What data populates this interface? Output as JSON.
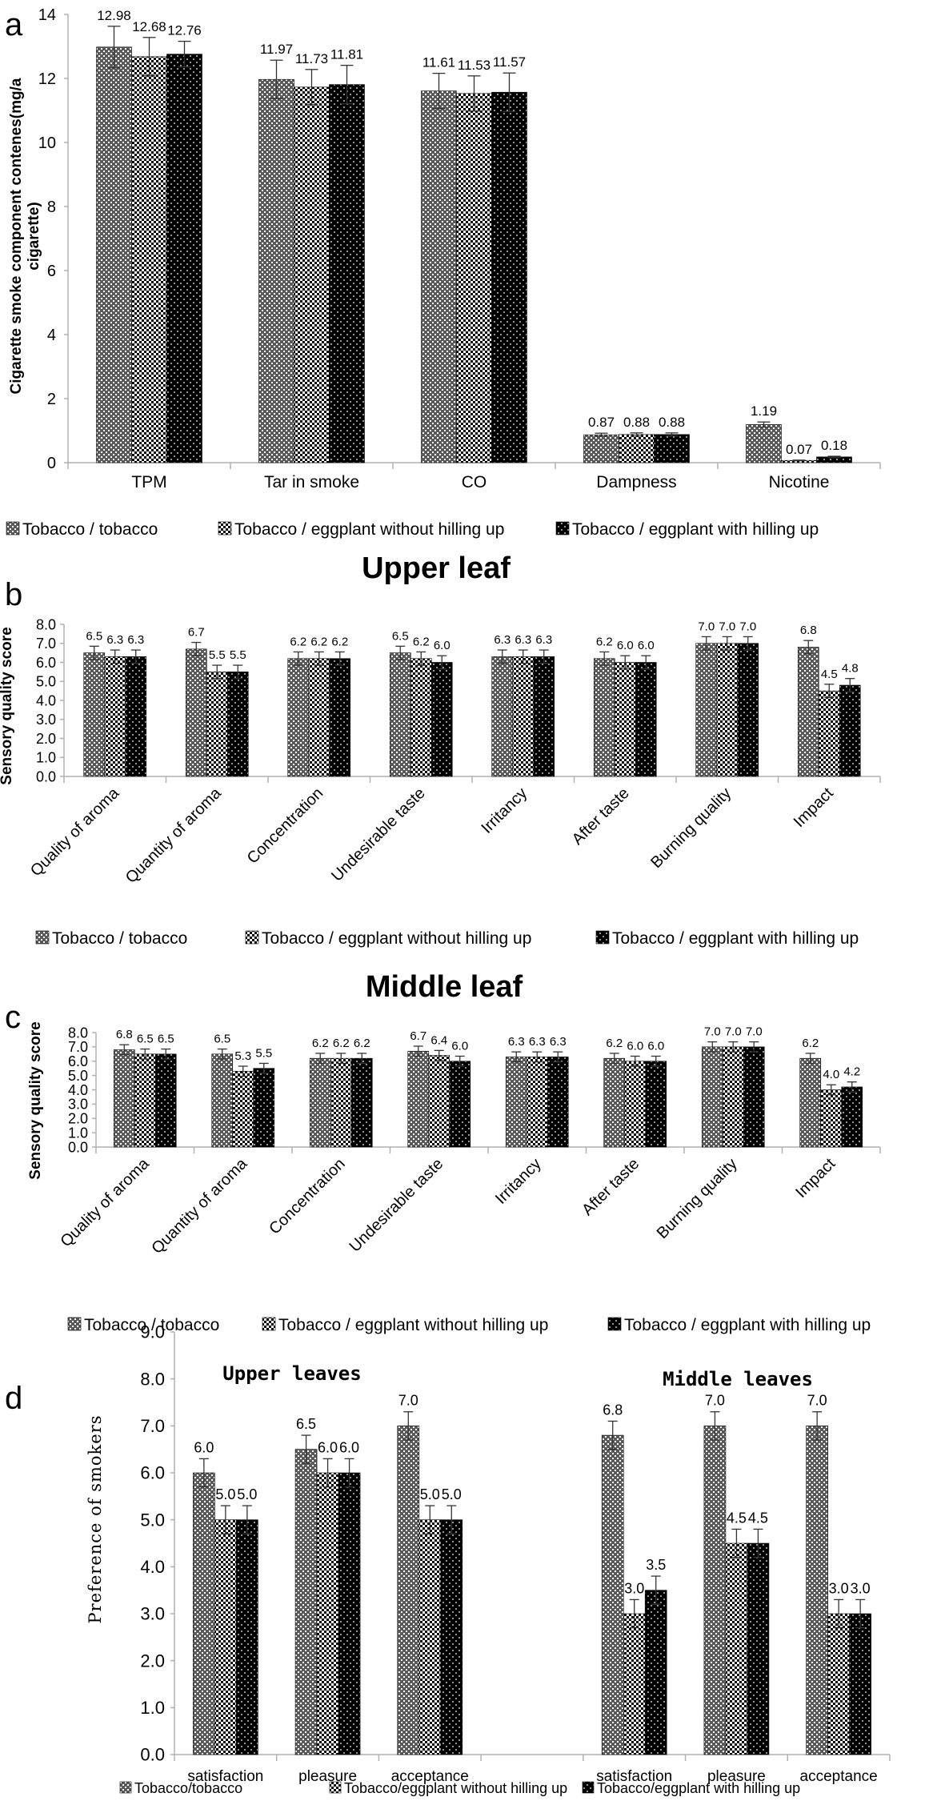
{
  "chart_data": [
    {
      "panel": "a",
      "type": "bar",
      "title": "",
      "ylabel": "Cigarette smoke component contenes(mg/a cigarette)",
      "xlabel": "",
      "ylim": [
        0,
        14
      ],
      "yticks": [
        "0",
        "2",
        "4",
        "6",
        "8",
        "10",
        "12",
        "14"
      ],
      "categories": [
        "TPM",
        "Tar in smoke",
        "CO",
        "Dampness",
        "Nicotine"
      ],
      "series": [
        {
          "name": "Tobacco / tobacco",
          "values": [
            12.98,
            11.97,
            11.61,
            0.87,
            1.19
          ],
          "labels": [
            "12.98",
            "11.97",
            "11.61",
            "0.87",
            "1.19"
          ],
          "errors": [
            0.65,
            0.6,
            0.55,
            0.05,
            0.08
          ]
        },
        {
          "name": "Tobacco / eggplant without hilling up",
          "values": [
            12.68,
            11.73,
            11.53,
            0.88,
            0.07
          ],
          "labels": [
            "12.68",
            "11.73",
            "11.53",
            "0.88",
            "0.07"
          ],
          "errors": [
            0.6,
            0.55,
            0.55,
            0.05,
            0.01
          ]
        },
        {
          "name": "Tobacco / eggplant with hilling up",
          "values": [
            12.76,
            11.81,
            11.57,
            0.88,
            0.18
          ],
          "labels": [
            "12.76",
            "11.81",
            "11.57",
            "0.88",
            "0.18"
          ],
          "errors": [
            0.4,
            0.6,
            0.6,
            0.05,
            0.02
          ]
        }
      ],
      "grid": false,
      "legend": "bottom"
    },
    {
      "panel": "b",
      "type": "bar",
      "title": "Upper leaf",
      "ylabel": "Sensory quality score",
      "xlabel": "",
      "ylim": [
        0,
        8
      ],
      "yticks": [
        "0.0",
        "1.0",
        "2.0",
        "3.0",
        "4.0",
        "5.0",
        "6.0",
        "7.0",
        "8.0"
      ],
      "categories": [
        "Quality of aroma",
        "Quantity of aroma",
        "Concentration",
        "Undesirable taste",
        "Irritancy",
        "After taste",
        "Burning quality",
        "Impact"
      ],
      "series": [
        {
          "name": "Tobacco / tobacco",
          "values": [
            6.5,
            6.7,
            6.2,
            6.5,
            6.3,
            6.2,
            7.0,
            6.8
          ],
          "labels": [
            "6.5",
            "6.7",
            "6.2",
            "6.5",
            "6.3",
            "6.2",
            "7.0",
            "6.8"
          ]
        },
        {
          "name": "Tobacco / eggplant without hilling up",
          "values": [
            6.3,
            5.5,
            6.2,
            6.2,
            6.3,
            6.0,
            7.0,
            4.5
          ],
          "labels": [
            "6.3",
            "5.5",
            "6.2",
            "6.2",
            "6.3",
            "6.0",
            "7.0",
            "4.5"
          ]
        },
        {
          "name": "Tobacco / eggplant with hilling up",
          "values": [
            6.3,
            5.5,
            6.2,
            6.0,
            6.3,
            6.0,
            7.0,
            4.8
          ],
          "labels": [
            "6.3",
            "5.5",
            "6.2",
            "6.0",
            "6.3",
            "6.0",
            "7.0",
            "4.8"
          ]
        }
      ],
      "error": 0.35,
      "grid": false,
      "legend": "bottom"
    },
    {
      "panel": "c",
      "type": "bar",
      "title": "Middle leaf",
      "ylabel": "Sensory quality score",
      "xlabel": "",
      "ylim": [
        0,
        8
      ],
      "yticks": [
        "0.0",
        "1.0",
        "2.0",
        "3.0",
        "4.0",
        "5.0",
        "6.0",
        "7.0",
        "8.0"
      ],
      "categories": [
        "Quality of aroma",
        "Quantity of aroma",
        "Concentration",
        "Undesirable taste",
        "Irritancy",
        "After taste",
        "Burning quality",
        "Impact"
      ],
      "series": [
        {
          "name": "Tobacco / tobacco",
          "values": [
            6.8,
            6.5,
            6.2,
            6.7,
            6.3,
            6.2,
            7.0,
            6.2
          ],
          "labels": [
            "6.8",
            "6.5",
            "6.2",
            "6.7",
            "6.3",
            "6.2",
            "7.0",
            "6.2"
          ]
        },
        {
          "name": "Tobacco / eggplant without hilling up",
          "values": [
            6.5,
            5.3,
            6.2,
            6.4,
            6.3,
            6.0,
            7.0,
            4.0
          ],
          "labels": [
            "6.5",
            "5.3",
            "6.2",
            "6.4",
            "6.3",
            "6.0",
            "7.0",
            "4.0"
          ]
        },
        {
          "name": "Tobacco / eggplant with hilling up",
          "values": [
            6.5,
            5.5,
            6.2,
            6.0,
            6.3,
            6.0,
            7.0,
            4.2
          ],
          "labels": [
            "6.5",
            "5.5",
            "6.2",
            "6.0",
            "6.3",
            "6.0",
            "7.0",
            "4.2"
          ]
        }
      ],
      "error": 0.35,
      "grid": false,
      "legend": "bottom"
    },
    {
      "panel": "d",
      "type": "bar",
      "title": "",
      "group_titles": [
        "Upper leaves",
        "Middle leaves"
      ],
      "ylabel": "Preference of smokers",
      "xlabel": "",
      "ylim": [
        0,
        9
      ],
      "yticks": [
        "0.0",
        "1.0",
        "2.0",
        "3.0",
        "4.0",
        "5.0",
        "6.0",
        "7.0",
        "8.0",
        "9.0"
      ],
      "categories": [
        "satisfaction",
        "pleasure",
        "acceptance",
        "",
        "satisfaction",
        "pleasure",
        "acceptance"
      ],
      "series": [
        {
          "name": "Tobacco/tobacco",
          "values": [
            6.0,
            6.5,
            7.0,
            null,
            6.8,
            7.0,
            7.0
          ],
          "labels": [
            "6.0",
            "6.5",
            "7.0",
            "",
            "6.8",
            "7.0",
            "7.0"
          ]
        },
        {
          "name": "Tobacco/eggplant without hilling up",
          "values": [
            5.0,
            6.0,
            5.0,
            null,
            3.0,
            4.5,
            3.0
          ],
          "labels": [
            "5.0",
            "6.0",
            "5.0",
            "",
            "3.0",
            "4.5",
            "3.0"
          ]
        },
        {
          "name": "Tobacco/eggplant with hilling up",
          "values": [
            5.0,
            6.0,
            5.0,
            null,
            3.5,
            4.5,
            3.0
          ],
          "labels": [
            "5.0",
            "6.0",
            "5.0",
            "",
            "3.5",
            "4.5",
            "3.0"
          ]
        }
      ],
      "error": 0.3,
      "grid": false,
      "legend": "bottom"
    }
  ],
  "colors": {
    "axis": "#b0b0b0",
    "ink": "#000000",
    "bar_dark": "#000000",
    "bar_mid": "#555555",
    "bar_light": "#ffffff"
  }
}
